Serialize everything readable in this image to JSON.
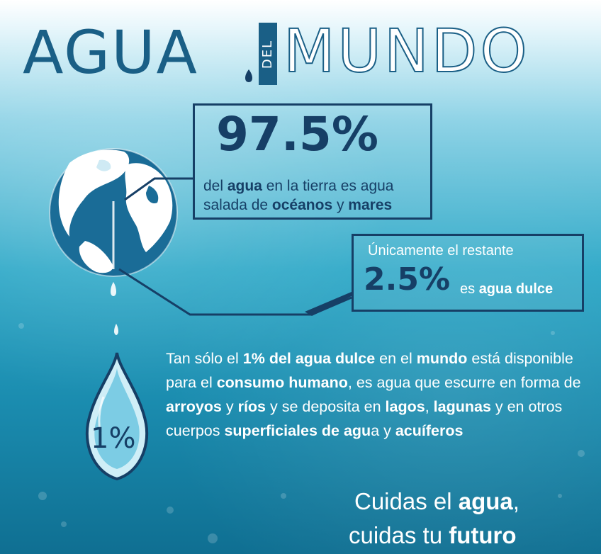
{
  "title": {
    "word1": "AGUA",
    "word2": "DEL",
    "word3": "MUNDO"
  },
  "stat_main": {
    "value": "97.5%",
    "text": [
      "del ",
      "agua",
      " en la tierra es agua salada de ",
      "océanos",
      " y ",
      "mares"
    ]
  },
  "stat_fresh": {
    "lead": "Únicamente el restante",
    "value": "2.5%",
    "suffix_plain": "es ",
    "suffix_bold": "agua dulce"
  },
  "drop_label": "1%",
  "paragraph": [
    "Tan sólo el ",
    "1% del agua dulce",
    " en el ",
    "mundo",
    " está disponible para el ",
    "consumo humano",
    ", es agua que escurre en forma de ",
    "arroyos",
    " y ",
    "ríos",
    " y se deposita en ",
    "lagos",
    ", ",
    "lagunas",
    " y en otros cuerpos ",
    "superficiales de agu",
    "a y ",
    "acuíferos"
  ],
  "slogan": {
    "line1_plain": "Cuidas el ",
    "line1_bold": "agua",
    "line1_end": ",",
    "line2_plain": "cuidas tu ",
    "line2_bold": "futuro"
  },
  "colors": {
    "navy": "#163f66",
    "title_blue": "#1a5f86",
    "water_light": "#8fd3e6",
    "water_deep": "#0f6f92"
  }
}
